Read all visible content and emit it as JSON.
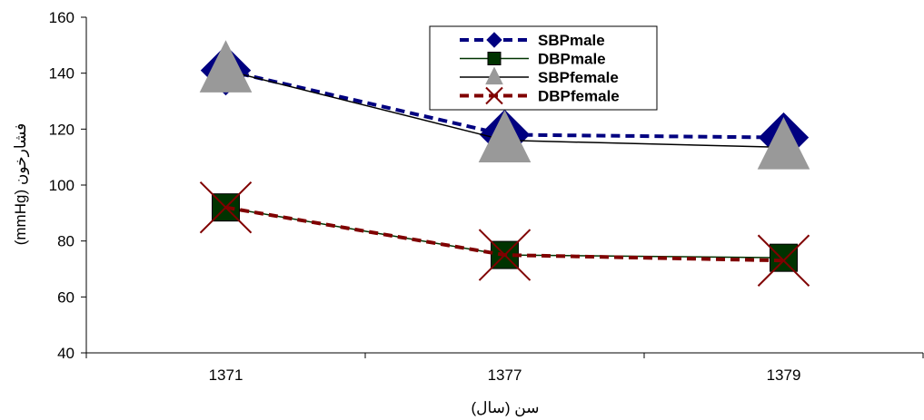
{
  "chart_data": {
    "type": "line",
    "categories": [
      "1371",
      "1377",
      "1379"
    ],
    "ylim": [
      40,
      160
    ],
    "yticks": [
      40,
      60,
      80,
      100,
      120,
      140,
      160
    ],
    "xlabel": "سن (سال)",
    "ylabel": "فشارخون (mmHg)",
    "grid": false,
    "legend_position": "top-right",
    "series": [
      {
        "name": "SBPmale",
        "values": [
          141,
          118,
          117
        ],
        "color": "#000080",
        "line_style": "dashed",
        "marker": "diamond"
      },
      {
        "name": "DBPmale",
        "values": [
          92,
          75,
          74
        ],
        "color": "#003300",
        "line_style": "solid",
        "marker": "square"
      },
      {
        "name": "SBPfemale",
        "values": [
          141,
          116,
          113.5
        ],
        "color": "#999999",
        "line_color": "#000000",
        "line_style": "solid",
        "marker": "triangle"
      },
      {
        "name": "DBPfemale",
        "values": [
          92,
          75,
          73
        ],
        "color": "#800000",
        "line_style": "dashed",
        "marker": "x"
      }
    ]
  }
}
